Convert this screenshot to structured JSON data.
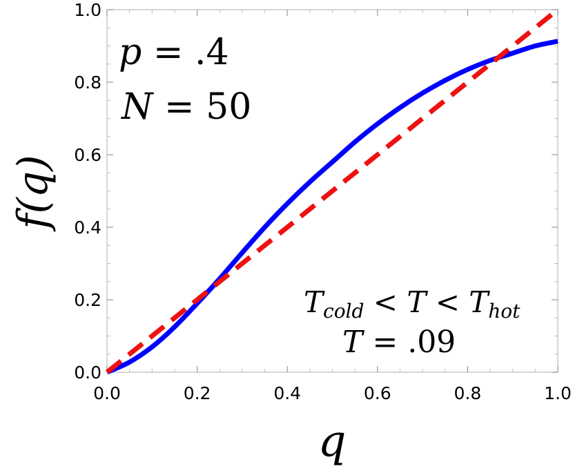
{
  "chart_data": {
    "type": "line",
    "xlabel": "q",
    "ylabel": "f(q)",
    "xlim": [
      0,
      1
    ],
    "ylim": [
      0,
      1
    ],
    "x_ticks": [
      "0.0",
      "0.2",
      "0.4",
      "0.6",
      "0.8",
      "1.0"
    ],
    "y_ticks": [
      "0.0",
      "0.2",
      "0.4",
      "0.6",
      "0.8",
      "1.0"
    ],
    "grid": false,
    "series": [
      {
        "style": "solid",
        "color": "#0000ff",
        "x": [
          0.0,
          0.05,
          0.1,
          0.15,
          0.2,
          0.25,
          0.3,
          0.35,
          0.4,
          0.45,
          0.5,
          0.55,
          0.6,
          0.65,
          0.7,
          0.75,
          0.8,
          0.85,
          0.9,
          0.95,
          1.0
        ],
        "y": [
          0.0,
          0.028,
          0.07,
          0.125,
          0.19,
          0.258,
          0.33,
          0.4,
          0.465,
          0.525,
          0.58,
          0.635,
          0.685,
          0.73,
          0.77,
          0.805,
          0.835,
          0.86,
          0.88,
          0.9,
          0.913
        ]
      },
      {
        "style": "dashed",
        "color": "#ee1111",
        "x": [
          0.0,
          1.0
        ],
        "y": [
          0.0,
          1.0
        ]
      }
    ],
    "annotations": {
      "params": [
        {
          "var": "p",
          "op": " = ",
          "val": ".4"
        },
        {
          "var": "N",
          "op": " = ",
          "val": "50"
        }
      ],
      "regime": {
        "left": "T",
        "left_sub": "cold",
        "mid": " < T < ",
        "right": "T",
        "right_sub": "hot"
      },
      "temperature": {
        "var": "T",
        "op": " = ",
        "val": ".09"
      }
    }
  }
}
